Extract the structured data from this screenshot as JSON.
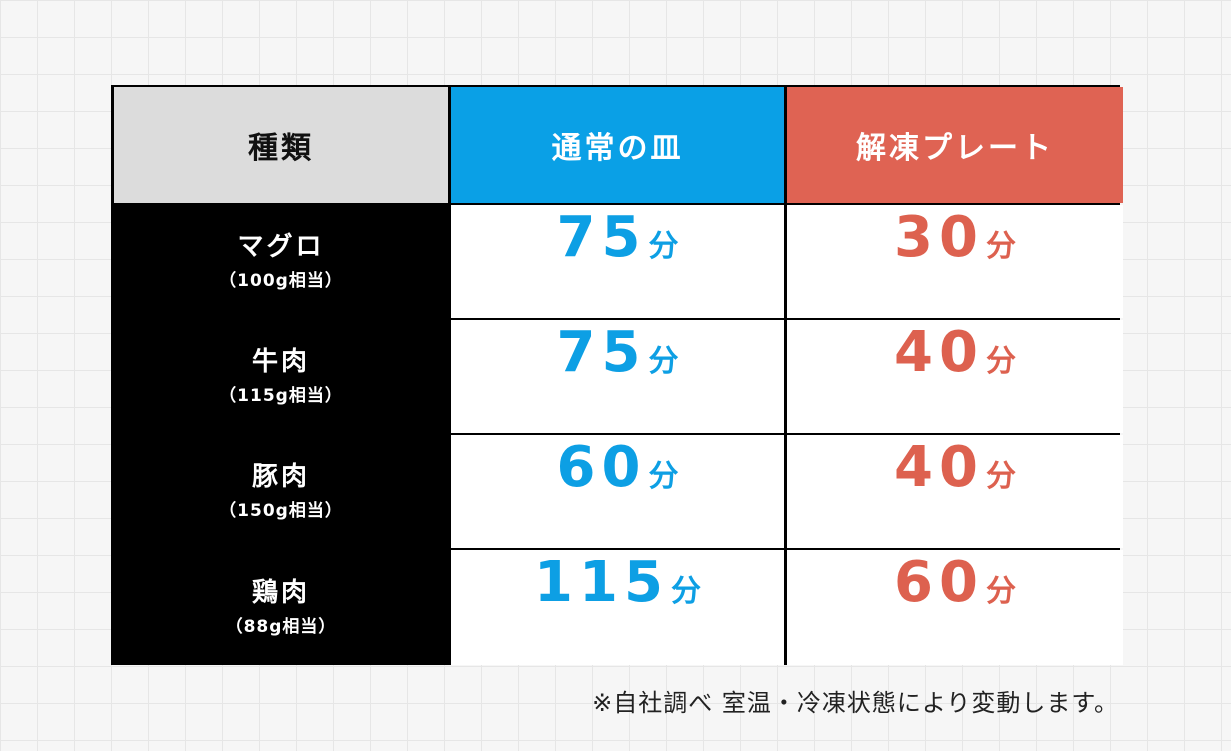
{
  "colors": {
    "normal": "#0d9fe4",
    "thaw": "#dd614f",
    "header_type_bg": "#dcdcdc",
    "row_label_bg": "#000000"
  },
  "chart_data": {
    "type": "table",
    "columns": [
      "種類",
      "通常の皿",
      "解凍プレート"
    ],
    "unit": "分",
    "rows": [
      {
        "name": "マグロ",
        "amount": "（100g相当）",
        "normal": "75",
        "thaw": "30"
      },
      {
        "name": "牛肉",
        "amount": "（115g相当）",
        "normal": "75",
        "thaw": "40"
      },
      {
        "name": "豚肉",
        "amount": "（150g相当）",
        "normal": "60",
        "thaw": "40"
      },
      {
        "name": "鶏肉",
        "amount": "（88g相当）",
        "normal": "115",
        "thaw": "60"
      }
    ]
  },
  "footnote": "※自社調べ 室温・冷凍状態により変動します。"
}
